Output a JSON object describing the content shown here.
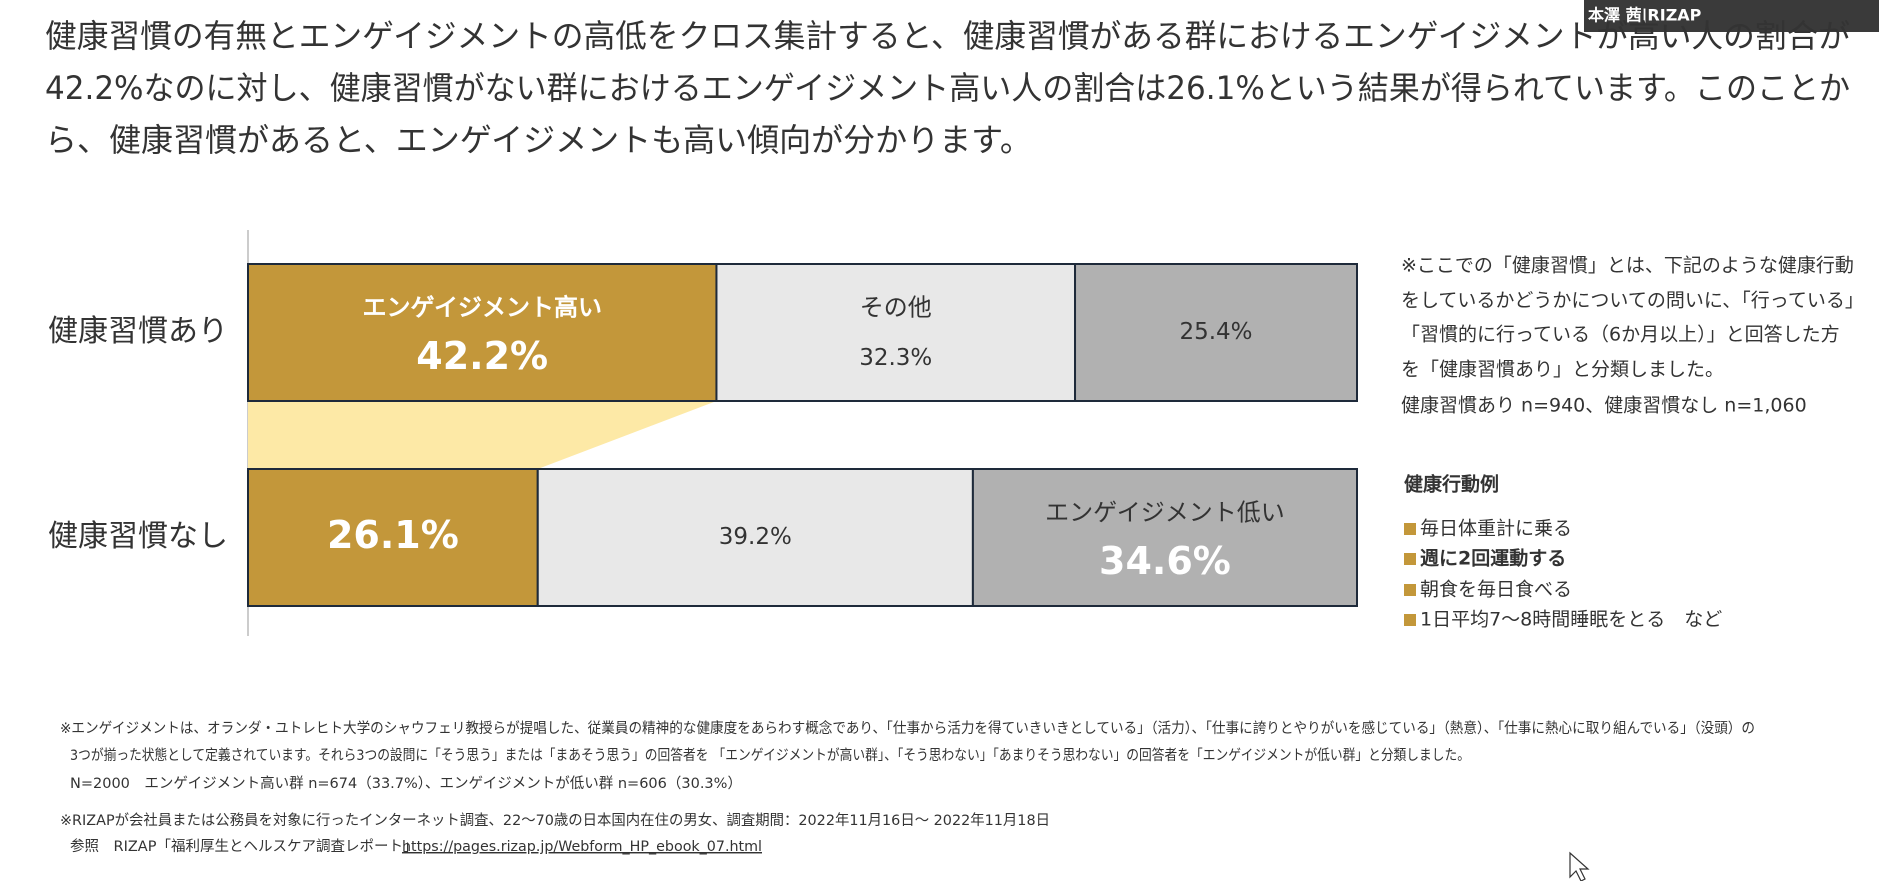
{
  "header": {
    "lines": [
      "健康習慣の有無とエンゲイジメントの高低をクロス集計すると、健康習慣がある群におけるエンゲイジメントが高い人の割合が",
      "42.2%なのに対し、健康習慣がない群におけるエンゲイジメント高い人の割合は26.1%という結果が得られています。このことか",
      "ら、健康習慣があると、エンゲイジメントも高い傾向が分かります。"
    ]
  },
  "chart_data": {
    "type": "bar",
    "orientation": "horizontal",
    "stacked": true,
    "categories": [
      "健康習慣あり",
      "健康習慣なし"
    ],
    "series": [
      {
        "name": "エンゲイジメント高い",
        "color": "#c3973a",
        "values": [
          42.2,
          26.1
        ],
        "value_labels": [
          "42.2%",
          "26.1%"
        ]
      },
      {
        "name": "その他",
        "color": "#e8e8e8",
        "values": [
          32.3,
          39.2
        ],
        "value_labels": [
          "32.3%",
          "39.2%"
        ]
      },
      {
        "name": "エンゲイジメント低い",
        "color": "#b1b1b1",
        "values": [
          25.4,
          34.6
        ],
        "value_labels": [
          "25.4%",
          "34.6%"
        ]
      }
    ],
    "connector_color": "#fde9a6"
  },
  "side_note": {
    "lines": [
      "※ここでの「健康習慣」とは、下記のような健康行動",
      "をしているかどうかについての問いに、「行っている」",
      "「習慣的に行っている（6か月以上）」と回答した方",
      "を「健康習慣あり」と分類しました。",
      "健康習慣あり n=940、健康習慣なし n=1,060"
    ]
  },
  "examples": {
    "title": "健康行動例",
    "items": [
      "毎日体重計に乗る",
      "週に2回運動する",
      "朝食を毎日食べる",
      "1日平均7～8時間睡眠をとる　など"
    ]
  },
  "footnotes": {
    "lines": [
      "※エンゲイジメントは、オランダ・ユトレヒト大学のシャウフェリ教授らが提唱した、従業員の精神的な健康度をあらわす概念であり、「仕事から活力を得ていきいきとしている」（活力）、「仕事に誇りとやりがいを感じている」（熱意）、「仕事に熱心に取り組んでいる」（没頭）の",
      "3つが揃った状態として定義されています。それら3つの設問に「そう思う」または「まあそう思う」の回答者を 「エンゲイジメントが高い群」、「そう思わない」「あまりそう思わない」の回答者を「エンゲイジメントが低い群」と分類しました。",
      "N=2000　エンゲイジメント高い群 n=674（33.7%）、エンゲイジメントが低い群 n=606（30.3%）",
      "※RIZAPが会社員または公務員を対象に行ったインターネット調査、22～70歳の日本国内在住の男女、調査期間：2022年11月16日～ 2022年11月18日"
    ],
    "reference": {
      "label": "参照　RIZAP「福利厚生とヘルスケア調査レポート」",
      "url": "https://pages.rizap.jp/Webform_HP_ebook_07.html"
    }
  },
  "overlay": {
    "name": "本澤 茜|RIZAP"
  }
}
